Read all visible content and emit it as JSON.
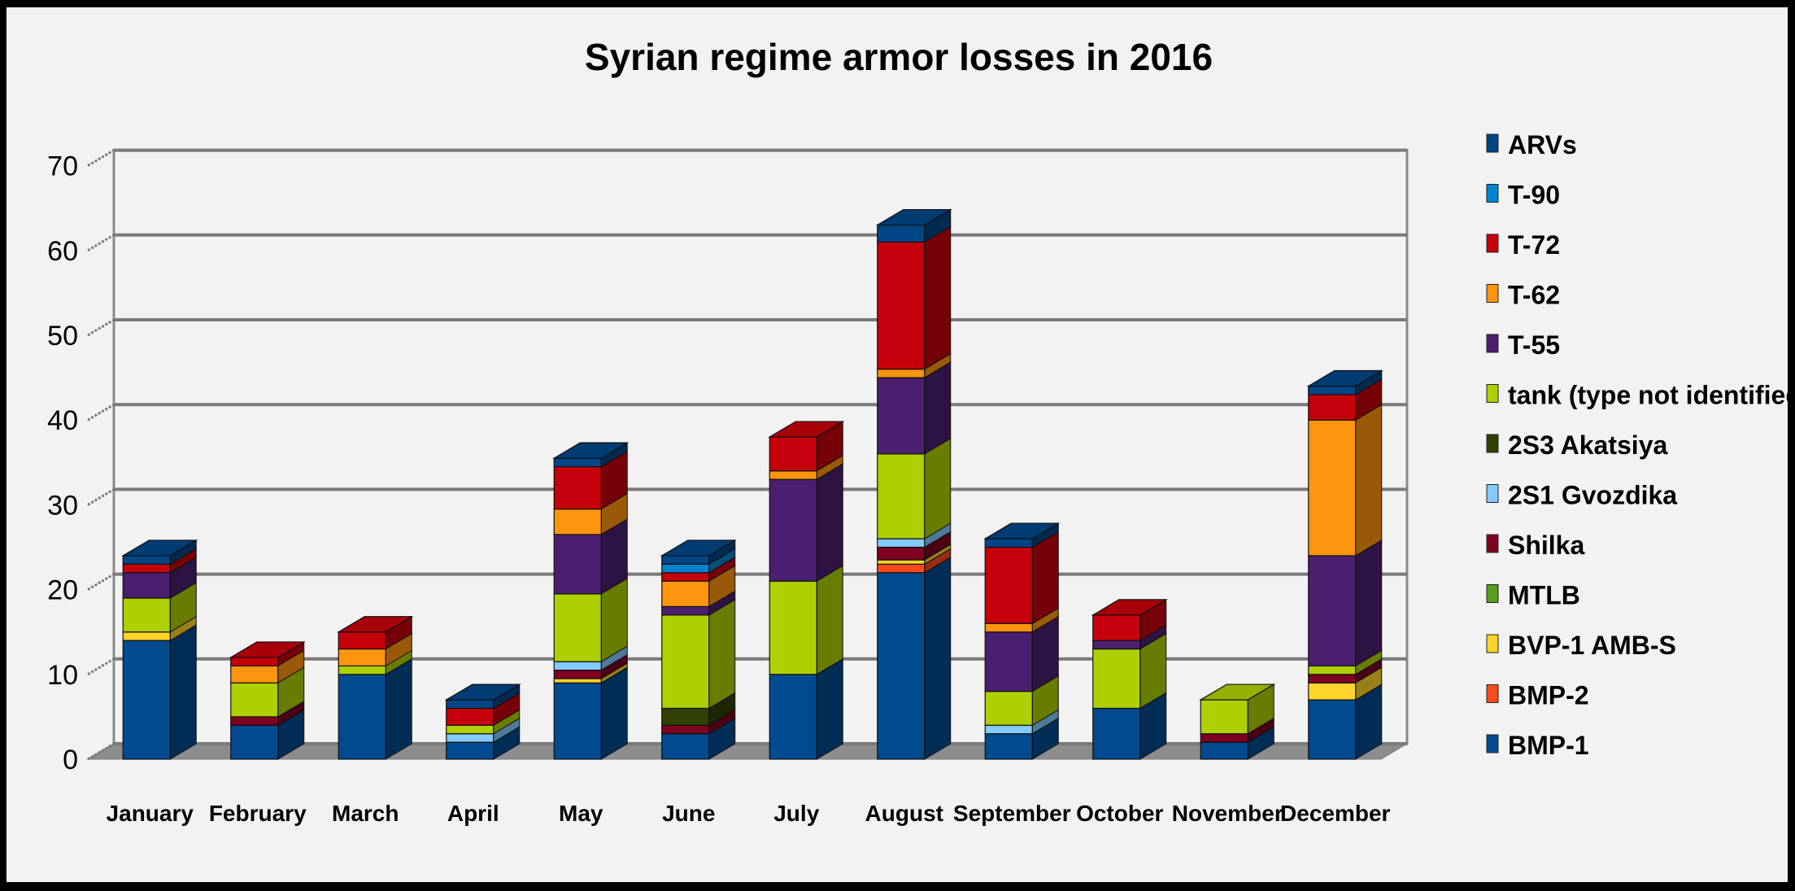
{
  "chart_data": {
    "type": "bar",
    "stacked": true,
    "style": "3d",
    "title": "Syrian regime armor losses in 2016",
    "xlabel": "",
    "ylabel": "",
    "ylim": [
      0,
      70
    ],
    "yticks": [
      0,
      10,
      20,
      30,
      40,
      50,
      60,
      70
    ],
    "grid": true,
    "legend_position": "right",
    "categories": [
      "January",
      "February",
      "March",
      "April",
      "May",
      "June",
      "July",
      "August",
      "September",
      "October",
      "November",
      "December"
    ],
    "series": [
      {
        "name": "BMP-1",
        "color": "#004a8f",
        "values": [
          14,
          4,
          10,
          2,
          9,
          3,
          10,
          22,
          3,
          6,
          2,
          7
        ]
      },
      {
        "name": "BMP-2",
        "color": "#ff4a1c",
        "values": [
          0,
          0,
          0,
          0,
          0,
          0,
          0,
          1,
          0,
          0,
          0,
          0
        ]
      },
      {
        "name": "BVP-1 AMB-S",
        "color": "#ffd428",
        "values": [
          1,
          0,
          0,
          0,
          0.5,
          0,
          0,
          0.5,
          0,
          0,
          0,
          2
        ]
      },
      {
        "name": "MTLB",
        "color": "#579d1c",
        "values": [
          0,
          0,
          0,
          0,
          0,
          0,
          0,
          0,
          0,
          0,
          0,
          0
        ]
      },
      {
        "name": "Shilka",
        "color": "#7e0021",
        "values": [
          0,
          1,
          0,
          0,
          1,
          1,
          0,
          1.5,
          0,
          0,
          1,
          1
        ]
      },
      {
        "name": "2S1 Gvozdika",
        "color": "#83caff",
        "values": [
          0,
          0,
          0,
          1,
          1,
          0,
          0,
          1,
          1,
          0,
          0,
          0
        ]
      },
      {
        "name": "2S3 Akatsiya",
        "color": "#314004",
        "values": [
          0,
          0,
          0,
          0,
          0,
          2,
          0,
          0,
          0,
          0,
          0,
          0
        ]
      },
      {
        "name": "tank (type not identified)",
        "color": "#aecf00",
        "values": [
          4,
          4,
          1,
          1,
          8,
          11,
          11,
          10,
          4,
          7,
          4,
          1
        ]
      },
      {
        "name": "T-55",
        "color": "#4b1f6f",
        "values": [
          3,
          0,
          0,
          0,
          7,
          1,
          12,
          9,
          7,
          1,
          0,
          13
        ]
      },
      {
        "name": "T-62",
        "color": "#ff950e",
        "values": [
          0,
          2,
          2,
          0,
          3,
          3,
          1,
          1,
          1,
          0,
          0,
          16
        ]
      },
      {
        "name": "T-72",
        "color": "#c5000b",
        "values": [
          1,
          1,
          2,
          2,
          5,
          1,
          4,
          15,
          9,
          3,
          0,
          3
        ]
      },
      {
        "name": "T-90",
        "color": "#0084d1",
        "values": [
          0,
          0,
          0,
          0,
          0,
          1,
          0,
          0,
          0,
          0,
          0,
          0
        ]
      },
      {
        "name": "ARVs",
        "color": "#004586",
        "values": [
          1,
          0,
          0,
          1,
          1,
          1,
          0,
          2,
          1,
          0,
          0,
          1
        ]
      }
    ]
  }
}
